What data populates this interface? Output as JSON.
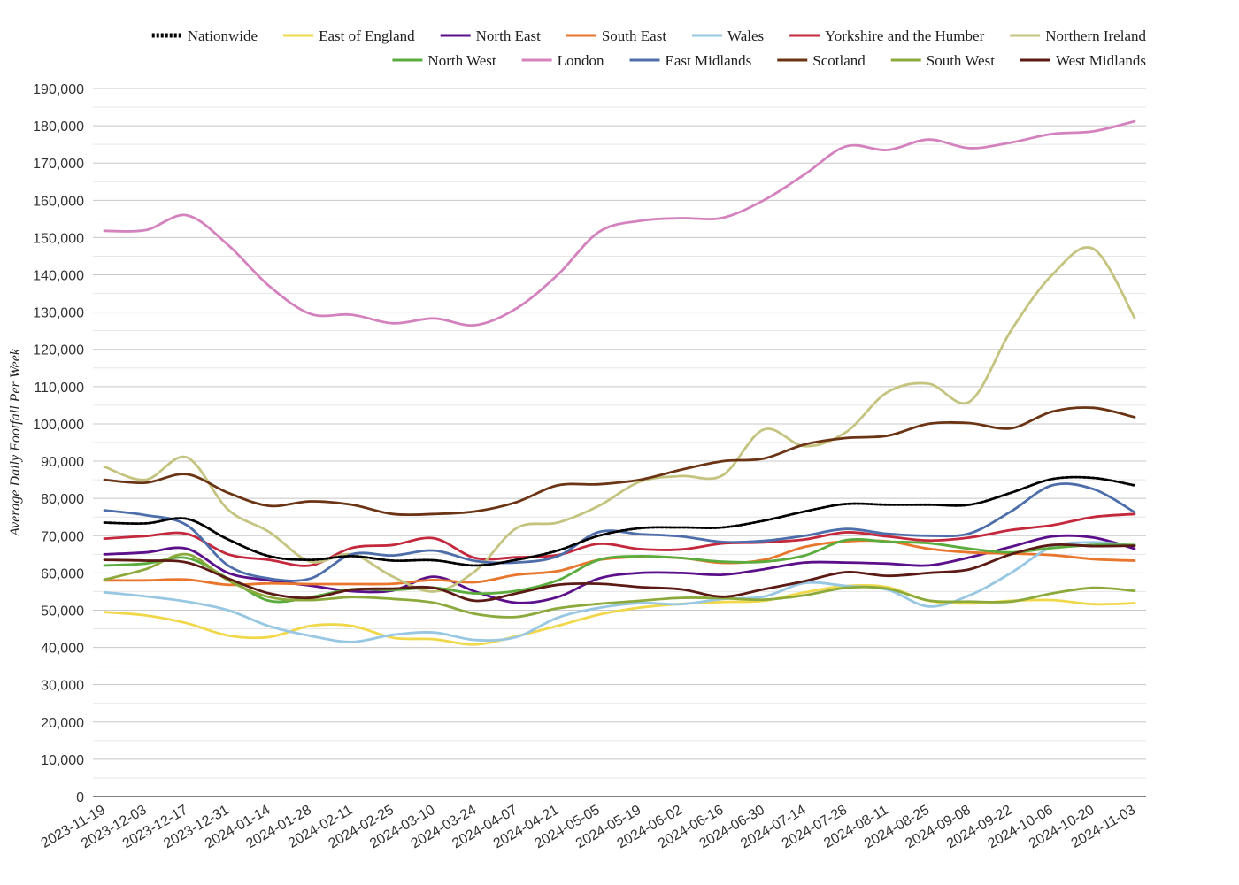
{
  "chart_data": {
    "type": "line",
    "title": "",
    "xlabel": "",
    "ylabel": "Average Daily Footfall Per Week",
    "ylim": [
      0,
      190000
    ],
    "y_ticks": [
      "0",
      "10,000",
      "20,000",
      "30,000",
      "40,000",
      "50,000",
      "60,000",
      "70,000",
      "80,000",
      "90,000",
      "100,000",
      "110,000",
      "120,000",
      "130,000",
      "140,000",
      "150,000",
      "160,000",
      "170,000",
      "180,000",
      "190,000"
    ],
    "y_tick_values": [
      0,
      10000,
      20000,
      30000,
      40000,
      50000,
      60000,
      70000,
      80000,
      90000,
      100000,
      110000,
      120000,
      130000,
      140000,
      150000,
      160000,
      170000,
      180000,
      190000
    ],
    "grid": true,
    "legend_position": "top",
    "x": [
      "2023-11-19",
      "2023-12-03",
      "2023-12-17",
      "2023-12-31",
      "2024-01-14",
      "2024-01-28",
      "2024-02-11",
      "2024-02-25",
      "2024-03-10",
      "2024-03-24",
      "2024-04-07",
      "2024-04-21",
      "2024-05-05",
      "2024-05-19",
      "2024-06-02",
      "2024-06-16",
      "2024-06-30",
      "2024-07-14",
      "2024-07-28",
      "2024-08-11",
      "2024-08-25",
      "2024-09-08",
      "2024-09-22",
      "2024-10-06",
      "2024-10-20",
      "2024-11-03"
    ],
    "series": [
      {
        "name": "Nationwide",
        "color": "#000000",
        "dashed": true,
        "values": [
          73500,
          73300,
          74500,
          69000,
          64500,
          63500,
          64500,
          63300,
          63400,
          62000,
          63500,
          66000,
          70000,
          72000,
          72200,
          72200,
          74000,
          76500,
          78500,
          78300,
          78300,
          78300,
          81500,
          85200,
          85500,
          83500
        ]
      },
      {
        "name": "East of England",
        "color": "#f0d84a",
        "values": [
          49500,
          48600,
          46500,
          43200,
          42800,
          45800,
          45800,
          42600,
          42200,
          40800,
          43000,
          45800,
          48800,
          50700,
          51700,
          52200,
          52500,
          54800,
          56500,
          56200,
          52500,
          51800,
          52500,
          52700,
          51600,
          51900
        ]
      },
      {
        "name": "North East",
        "color": "#5b0f8b",
        "values": [
          65000,
          65500,
          66500,
          60000,
          58000,
          56600,
          55100,
          55300,
          59000,
          55000,
          52000,
          53500,
          58500,
          60000,
          60000,
          59500,
          61000,
          62800,
          62800,
          62500,
          62000,
          64200,
          67000,
          69800,
          69500,
          66500
        ]
      },
      {
        "name": "South East",
        "color": "#e8762d",
        "values": [
          58000,
          58000,
          58200,
          56800,
          57200,
          57000,
          57000,
          57100,
          58100,
          57500,
          59500,
          60500,
          63500,
          64300,
          64000,
          62700,
          63500,
          67000,
          68500,
          68500,
          66500,
          65500,
          65200,
          64800,
          63700,
          63300
        ]
      },
      {
        "name": "Wales",
        "color": "#97c7e2",
        "values": [
          54800,
          53700,
          52300,
          50000,
          45700,
          43100,
          41500,
          43400,
          44000,
          42000,
          42800,
          48000,
          50600,
          51900,
          51600,
          53000,
          53600,
          57300,
          56500,
          55500,
          51000,
          54000,
          60000,
          67000,
          68200,
          67300
        ]
      },
      {
        "name": "Yorkshire and the Humber",
        "color": "#c4283c",
        "values": [
          69200,
          69900,
          70500,
          65000,
          63500,
          62000,
          66700,
          67500,
          69300,
          64000,
          64200,
          64800,
          67800,
          66400,
          66300,
          67900,
          68200,
          69000,
          70900,
          69800,
          68700,
          69500,
          71500,
          72800,
          75000,
          75800
        ]
      },
      {
        "name": "Northern Ireland",
        "color": "#c4c480",
        "values": [
          88500,
          85000,
          91000,
          77000,
          71000,
          63000,
          65000,
          59000,
          55000,
          60500,
          72000,
          73500,
          78000,
          84500,
          86000,
          86200,
          98500,
          94000,
          97800,
          108500,
          110800,
          106000,
          125000,
          140000,
          147000,
          128500
        ]
      },
      {
        "name": "North West",
        "color": "#5aac3c",
        "values": [
          62000,
          62500,
          64000,
          58500,
          52500,
          53500,
          55600,
          55400,
          56000,
          54500,
          55200,
          58000,
          63500,
          64500,
          64000,
          63000,
          63000,
          64700,
          68800,
          68400,
          68000,
          66500,
          65500,
          66700,
          67500,
          67500
        ]
      },
      {
        "name": "London",
        "color": "#d482be",
        "values": [
          151800,
          152000,
          156000,
          148000,
          137000,
          129500,
          129300,
          127000,
          128300,
          126500,
          131000,
          140000,
          151500,
          154500,
          155200,
          155300,
          160000,
          167000,
          174500,
          173500,
          176300,
          174000,
          175500,
          177800,
          178500,
          181200
        ]
      },
      {
        "name": "East Midlands",
        "color": "#4d6eaa",
        "values": [
          76800,
          75500,
          72800,
          62000,
          58500,
          58500,
          65000,
          64700,
          66000,
          63200,
          62800,
          64500,
          71000,
          70400,
          69800,
          68300,
          68600,
          70000,
          71800,
          70500,
          70000,
          70600,
          76500,
          83500,
          82500,
          76300
        ]
      },
      {
        "name": "Scotland",
        "color": "#6b3515",
        "values": [
          85000,
          84200,
          86500,
          81500,
          78000,
          79200,
          78300,
          75800,
          75800,
          76500,
          79000,
          83500,
          83800,
          85000,
          87700,
          90000,
          90700,
          94500,
          96200,
          96800,
          100000,
          100200,
          98800,
          103300,
          104300,
          101800
        ]
      },
      {
        "name": "South West",
        "color": "#8caa3c",
        "values": [
          58200,
          61000,
          65000,
          58000,
          53500,
          52700,
          53500,
          53000,
          52000,
          49000,
          48200,
          50500,
          51700,
          52500,
          53300,
          53200,
          52800,
          54000,
          56000,
          55800,
          52600,
          52300,
          52300,
          54500,
          56000,
          55200
        ]
      },
      {
        "name": "West Midlands",
        "color": "#5c1a14",
        "values": [
          63500,
          63300,
          62800,
          58500,
          54500,
          53300,
          55500,
          55800,
          56000,
          52500,
          54500,
          56800,
          57100,
          56200,
          55600,
          53600,
          55600,
          57800,
          60200,
          59200,
          60000,
          61000,
          65000,
          67500,
          67200,
          67300
        ]
      }
    ]
  }
}
